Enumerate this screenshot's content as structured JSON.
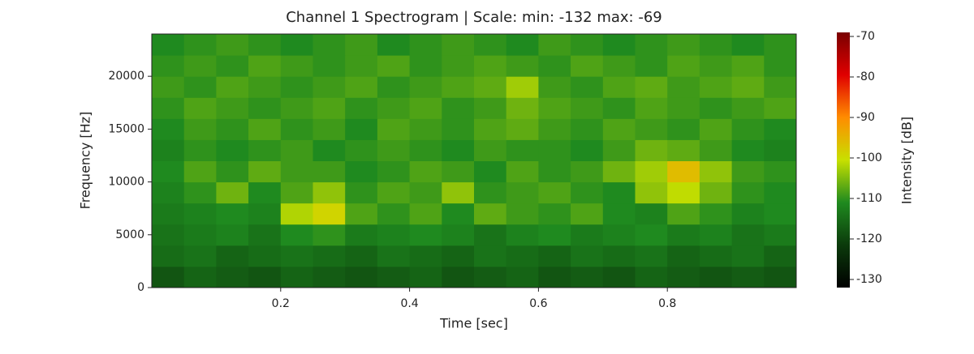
{
  "chart_data": {
    "type": "heatmap",
    "title": "Channel 1 Spectrogram | Scale: min: -132 max: -69",
    "xlabel": "Time [sec]",
    "ylabel": "Frequency [Hz]",
    "colorbar_label": "Intensity [dB]",
    "x": [
      0.025,
      0.075,
      0.125,
      0.175,
      0.225,
      0.275,
      0.325,
      0.375,
      0.425,
      0.475,
      0.525,
      0.575,
      0.625,
      0.675,
      0.725,
      0.775,
      0.825,
      0.875,
      0.925,
      0.975
    ],
    "y": [
      1000,
      3000,
      5000,
      7000,
      9000,
      11000,
      13000,
      15000,
      17000,
      19000,
      21000,
      23000
    ],
    "z": [
      [
        -118,
        -116,
        -117,
        -118,
        -116,
        -117,
        -118,
        -117,
        -116,
        -118,
        -117,
        -116,
        -118,
        -117,
        -118,
        -116,
        -117,
        -118,
        -117,
        -118
      ],
      [
        -115,
        -114,
        -116,
        -115,
        -114,
        -115,
        -116,
        -114,
        -115,
        -116,
        -114,
        -115,
        -116,
        -114,
        -115,
        -114,
        -116,
        -115,
        -114,
        -116
      ],
      [
        -114,
        -113,
        -112,
        -114,
        -111,
        -110,
        -113,
        -112,
        -111,
        -112,
        -114,
        -112,
        -111,
        -113,
        -112,
        -111,
        -113,
        -112,
        -114,
        -113
      ],
      [
        -113,
        -112,
        -111,
        -112,
        -102,
        -99,
        -108,
        -110,
        -108,
        -111,
        -107,
        -109,
        -110,
        -108,
        -111,
        -112,
        -108,
        -110,
        -112,
        -111
      ],
      [
        -112,
        -110,
        -106,
        -111,
        -108,
        -104,
        -110,
        -108,
        -109,
        -104,
        -110,
        -109,
        -108,
        -110,
        -111,
        -104,
        -101,
        -106,
        -110,
        -111
      ],
      [
        -111,
        -108,
        -110,
        -107,
        -109,
        -109,
        -111,
        -110,
        -108,
        -109,
        -111,
        -108,
        -110,
        -109,
        -106,
        -103,
        -96,
        -104,
        -109,
        -110
      ],
      [
        -112,
        -110,
        -111,
        -110,
        -109,
        -111,
        -110,
        -109,
        -110,
        -111,
        -109,
        -110,
        -110,
        -111,
        -109,
        -106,
        -107,
        -109,
        -111,
        -112
      ],
      [
        -111,
        -109,
        -110,
        -108,
        -110,
        -109,
        -111,
        -108,
        -109,
        -110,
        -108,
        -107,
        -109,
        -110,
        -108,
        -109,
        -110,
        -108,
        -110,
        -111
      ],
      [
        -110,
        -108,
        -109,
        -110,
        -109,
        -108,
        -110,
        -109,
        -108,
        -110,
        -109,
        -106,
        -108,
        -109,
        -110,
        -108,
        -109,
        -110,
        -109,
        -108
      ],
      [
        -109,
        -110,
        -108,
        -109,
        -110,
        -109,
        -108,
        -110,
        -109,
        -108,
        -107,
        -103,
        -109,
        -110,
        -108,
        -107,
        -109,
        -108,
        -107,
        -109
      ],
      [
        -110,
        -109,
        -110,
        -108,
        -109,
        -110,
        -109,
        -108,
        -110,
        -109,
        -108,
        -109,
        -110,
        -108,
        -109,
        -110,
        -108,
        -109,
        -108,
        -110
      ],
      [
        -111,
        -110,
        -109,
        -110,
        -111,
        -110,
        -109,
        -111,
        -110,
        -109,
        -110,
        -111,
        -109,
        -110,
        -111,
        -110,
        -109,
        -110,
        -111,
        -110
      ]
    ],
    "xlim": [
      0,
      1
    ],
    "xticks": [
      0.2,
      0.4,
      0.6,
      0.8
    ],
    "ylim": [
      0,
      24000
    ],
    "yticks": [
      0,
      5000,
      10000,
      15000,
      20000
    ],
    "zlim": [
      -132,
      -69
    ],
    "zticks": [
      -70,
      -80,
      -90,
      -100,
      -110,
      -120,
      -130
    ],
    "colormap": [
      "#000000",
      "#0b3a0b",
      "#1f8a1f",
      "#c8e000",
      "#ff8c00",
      "#e00000",
      "#7a0000"
    ]
  }
}
